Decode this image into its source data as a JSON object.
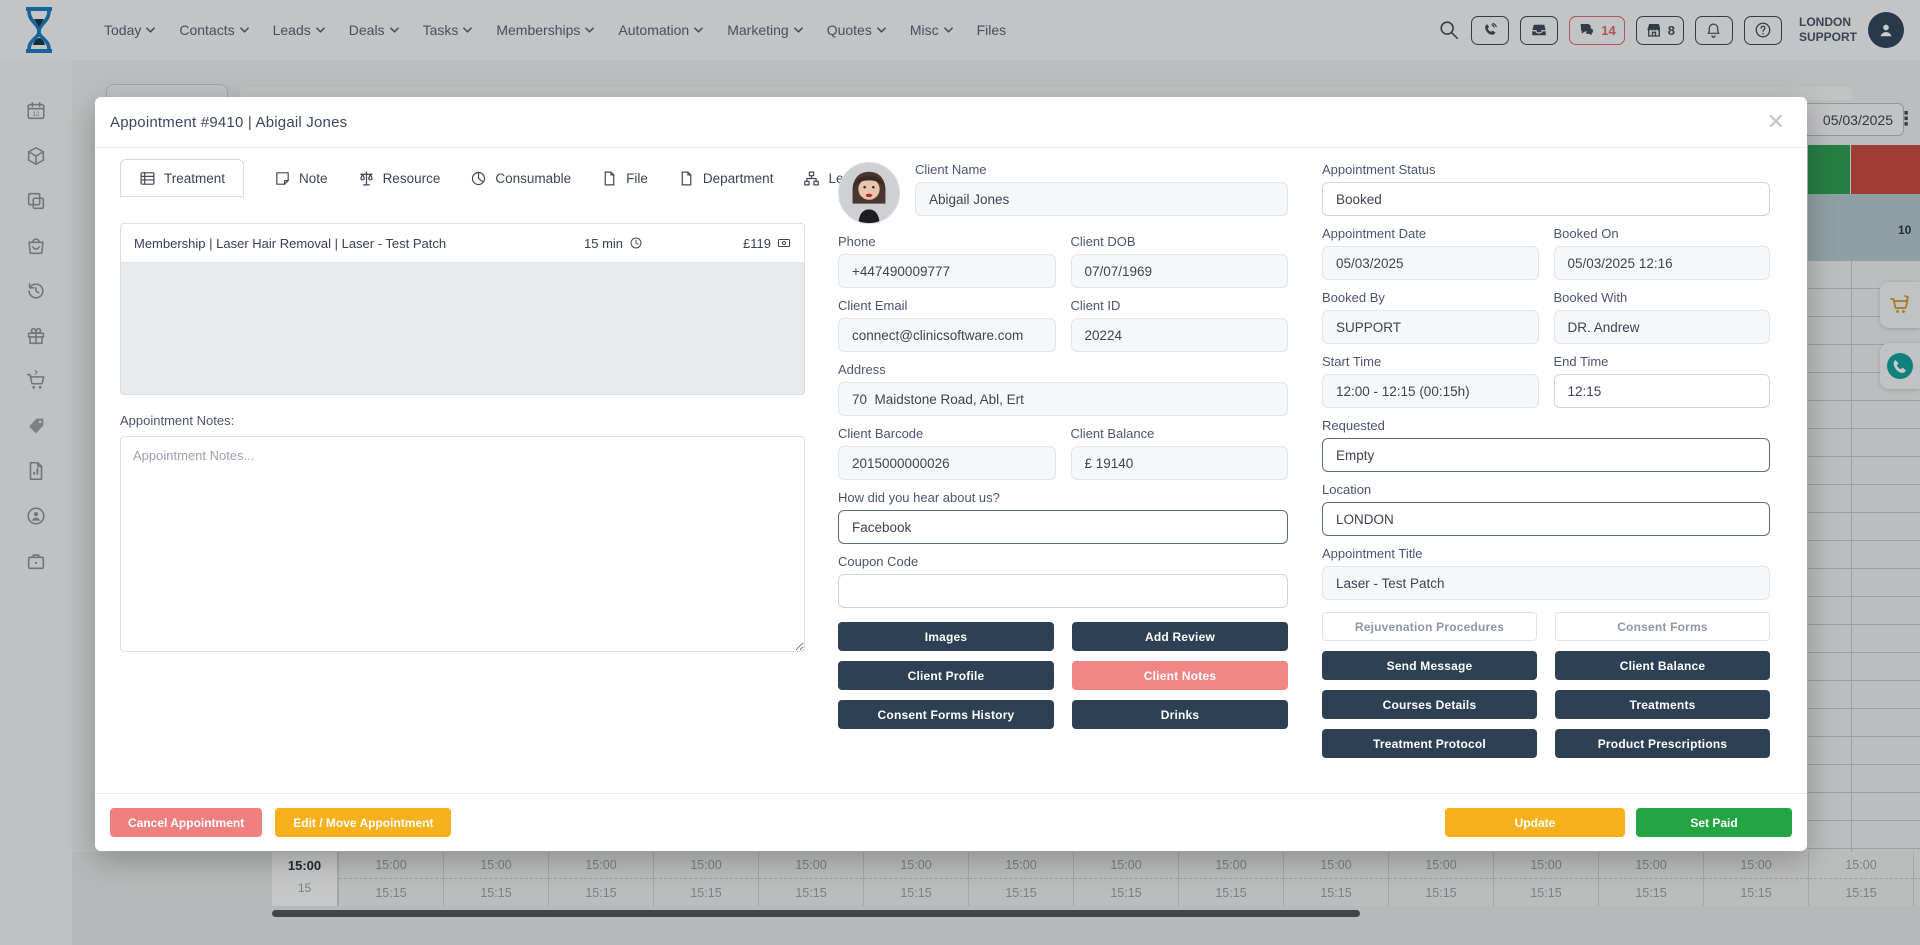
{
  "navbar": {
    "menu": [
      {
        "label": "Today"
      },
      {
        "label": "Contacts"
      },
      {
        "label": "Leads"
      },
      {
        "label": "Deals"
      },
      {
        "label": "Tasks"
      },
      {
        "label": "Memberships"
      },
      {
        "label": "Automation"
      },
      {
        "label": "Marketing"
      },
      {
        "label": "Quotes"
      },
      {
        "label": "Misc"
      },
      {
        "label": "Files"
      }
    ],
    "chat_count": "14",
    "store_count": "8",
    "user_line1": "LONDON",
    "user_line2": "SUPPORT"
  },
  "modal": {
    "title": "Appointment #9410 | Abigail Jones",
    "tabs": [
      {
        "label": "Treatment"
      },
      {
        "label": "Note"
      },
      {
        "label": "Resource"
      },
      {
        "label": "Consumable"
      },
      {
        "label": "File"
      },
      {
        "label": "Department"
      },
      {
        "label": "Legend"
      }
    ],
    "treatment_row": {
      "name": "Membership | Laser Hair Removal | Laser - Test Patch",
      "duration": "15 min",
      "price": "£119"
    },
    "notes": {
      "label": "Appointment Notes:",
      "placeholder": "Appointment Notes..."
    },
    "fields": {
      "client_name": {
        "label": "Client Name",
        "value": "Abigail Jones"
      },
      "phone": {
        "label": "Phone",
        "value": "+447490009777"
      },
      "dob": {
        "label": "Client DOB",
        "value": "07/07/1969"
      },
      "email": {
        "label": "Client Email",
        "value": "connect@clinicsoftware.com"
      },
      "client_id": {
        "label": "Client ID",
        "value": "20224"
      },
      "address": {
        "label": "Address",
        "value": "70  Maidstone Road, Abl, Ert"
      },
      "barcode": {
        "label": "Client Barcode",
        "value": "2015000000026"
      },
      "balance": {
        "label": "Client Balance",
        "value": "£ 19140"
      },
      "hear": {
        "label": "How did you hear about us?",
        "value": "Facebook"
      },
      "coupon": {
        "label": "Coupon Code",
        "value": ""
      },
      "status": {
        "label": "Appointment Status",
        "value": "Booked"
      },
      "date": {
        "label": "Appointment Date",
        "value": "05/03/2025"
      },
      "booked_on": {
        "label": "Booked On",
        "value": "05/03/2025 12:16"
      },
      "booked_by": {
        "label": "Booked By",
        "value": "SUPPORT"
      },
      "booked_with": {
        "label": "Booked With",
        "value": "DR. Andrew"
      },
      "start_time": {
        "label": "Start Time",
        "value": "12:00 - 12:15 (00:15h)"
      },
      "end_time": {
        "label": "End Time",
        "value": "12:15"
      },
      "requested": {
        "label": "Requested",
        "value": "Empty"
      },
      "location": {
        "label": "Location",
        "value": "LONDON"
      },
      "title_field": {
        "label": "Appointment Title",
        "value": "Laser - Test Patch"
      }
    },
    "mid_buttons": [
      {
        "label": "Images"
      },
      {
        "label": "Add Review"
      },
      {
        "label": "Client Profile"
      },
      {
        "label": "Client Notes"
      },
      {
        "label": "Consent Forms History"
      },
      {
        "label": "Drinks"
      }
    ],
    "right_buttons": [
      {
        "label": "Rejuvenation Procedures"
      },
      {
        "label": "Consent Forms"
      },
      {
        "label": "Send Message"
      },
      {
        "label": "Client Balance"
      },
      {
        "label": "Courses Details"
      },
      {
        "label": "Treatments"
      },
      {
        "label": "Treatment Protocol"
      },
      {
        "label": "Product Prescriptions"
      }
    ],
    "footer": {
      "cancel": "Cancel Appointment",
      "edit_move": "Edit / Move Appointment",
      "update": "Update",
      "set_paid": "Set Paid"
    }
  },
  "background": {
    "date_value": "05/03/2025",
    "clipped_label": "10",
    "calendar": {
      "gutter_hour": "15:00",
      "gutter_min": "15",
      "row1": "15:00",
      "row2": "15:15",
      "column_count": 16
    }
  },
  "colors": {
    "navy_button": "#2e4154",
    "salmon": "#f08080",
    "yellow": "#f6b11d",
    "green": "#23a544",
    "chat_red": "#e0696f",
    "select_border": "#5f6c7b",
    "teal_phone": "#11a39e",
    "cart_yellow": "#cf9a1e",
    "cal_green": "#2f9e52",
    "cal_red": "#c94a41",
    "cal_blue": "#b4cace"
  }
}
